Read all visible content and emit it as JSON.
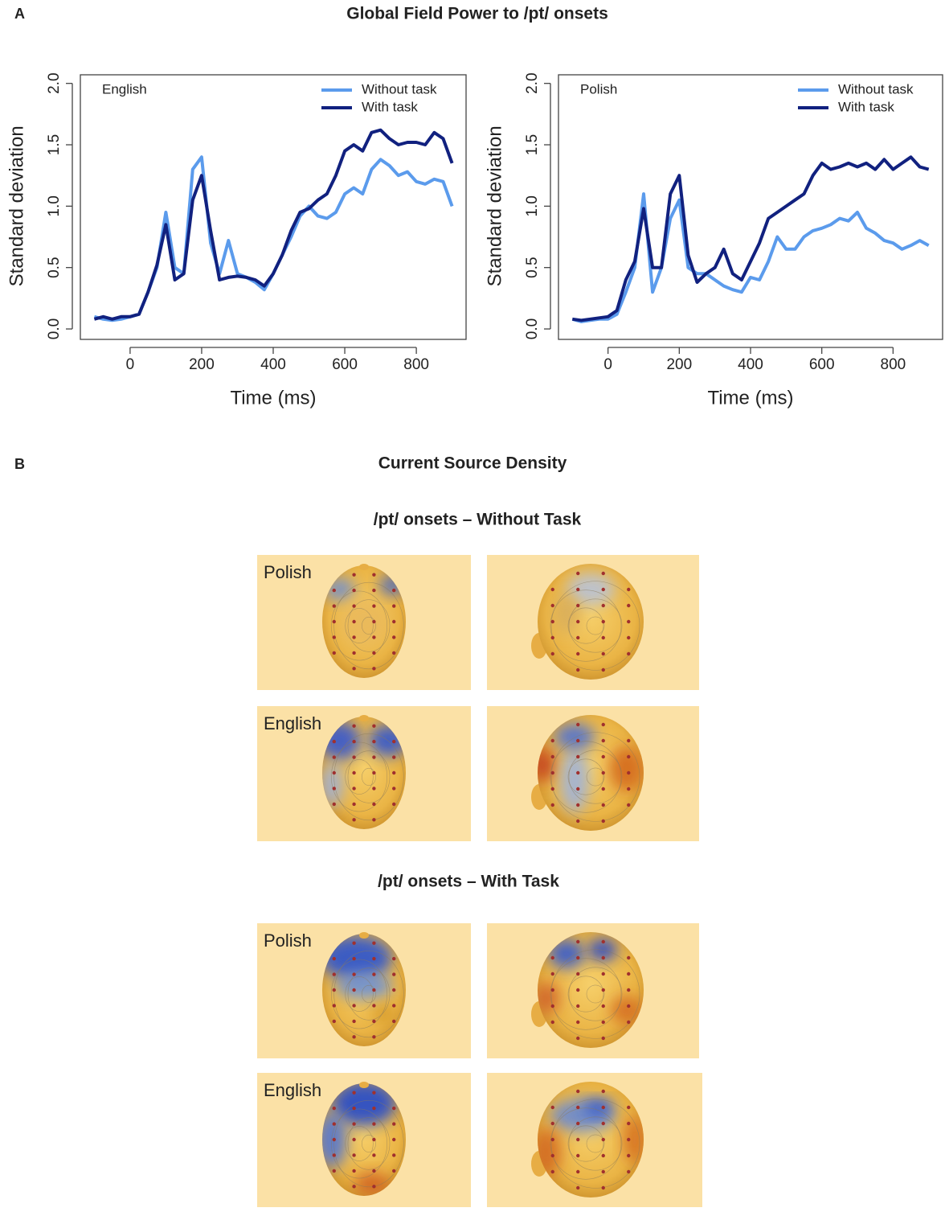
{
  "part_a": {
    "label": "A",
    "title": "Global Field Power  to /pt/ onsets"
  },
  "chart_data": [
    {
      "type": "line",
      "annotation": "English",
      "x_label": "Time (ms)",
      "y_label": "Standard deviation",
      "x": [
        -100,
        -75,
        -50,
        -25,
        0,
        25,
        50,
        75,
        100,
        125,
        150,
        175,
        200,
        225,
        250,
        275,
        300,
        325,
        350,
        375,
        400,
        425,
        450,
        475,
        500,
        525,
        550,
        575,
        600,
        625,
        650,
        675,
        700,
        725,
        750,
        775,
        800,
        825,
        850,
        875,
        900
      ],
      "xlim": [
        -139,
        939
      ],
      "ylim": [
        -0.085,
        2.07
      ],
      "xticks": [
        0,
        200,
        400,
        600,
        800
      ],
      "yticks": [
        {
          "value": 0,
          "label": "0.0"
        },
        0.5,
        {
          "value": 1,
          "label": "1.0"
        },
        1.5,
        {
          "value": 2,
          "label": "2.0"
        }
      ],
      "legend": "top-right",
      "series": [
        {
          "name": "Without task",
          "color": "#5b9bec",
          "values": [
            0.1,
            0.08,
            0.07,
            0.08,
            0.1,
            0.12,
            0.3,
            0.5,
            0.95,
            0.5,
            0.45,
            1.3,
            1.4,
            0.7,
            0.45,
            0.72,
            0.45,
            0.42,
            0.38,
            0.32,
            0.45,
            0.6,
            0.75,
            0.92,
            1.0,
            0.92,
            0.9,
            0.95,
            1.1,
            1.15,
            1.1,
            1.3,
            1.38,
            1.33,
            1.25,
            1.28,
            1.2,
            1.18,
            1.22,
            1.2,
            1.0
          ]
        },
        {
          "name": "With task",
          "color": "#11217f",
          "values": [
            0.08,
            0.1,
            0.08,
            0.1,
            0.1,
            0.12,
            0.3,
            0.52,
            0.85,
            0.4,
            0.45,
            1.05,
            1.25,
            0.8,
            0.4,
            0.42,
            0.43,
            0.42,
            0.4,
            0.35,
            0.45,
            0.6,
            0.8,
            0.95,
            0.98,
            1.05,
            1.1,
            1.25,
            1.45,
            1.5,
            1.45,
            1.6,
            1.62,
            1.55,
            1.5,
            1.52,
            1.52,
            1.5,
            1.6,
            1.55,
            1.35
          ]
        }
      ]
    },
    {
      "type": "line",
      "annotation": "Polish",
      "x_label": "Time (ms)",
      "y_label": "Standard deviation",
      "x": [
        -100,
        -75,
        -50,
        -25,
        0,
        25,
        50,
        75,
        100,
        125,
        150,
        175,
        200,
        225,
        250,
        275,
        300,
        325,
        350,
        375,
        400,
        425,
        450,
        475,
        500,
        525,
        550,
        575,
        600,
        625,
        650,
        675,
        700,
        725,
        750,
        775,
        800,
        825,
        850,
        875,
        900
      ],
      "xlim": [
        -139,
        939
      ],
      "ylim": [
        -0.085,
        2.07
      ],
      "xticks": [
        0,
        200,
        400,
        600,
        800
      ],
      "yticks": [
        {
          "value": 0,
          "label": "0.0"
        },
        0.5,
        {
          "value": 1,
          "label": "1.0"
        },
        1.5,
        {
          "value": 2,
          "label": "2.0"
        }
      ],
      "legend": "top-right",
      "series": [
        {
          "name": "Without task",
          "color": "#5b9bec",
          "values": [
            0.08,
            0.06,
            0.07,
            0.08,
            0.08,
            0.12,
            0.3,
            0.5,
            1.1,
            0.3,
            0.5,
            0.9,
            1.05,
            0.5,
            0.45,
            0.45,
            0.4,
            0.35,
            0.32,
            0.3,
            0.42,
            0.4,
            0.55,
            0.75,
            0.65,
            0.65,
            0.75,
            0.8,
            0.82,
            0.85,
            0.9,
            0.88,
            0.95,
            0.82,
            0.78,
            0.72,
            0.7,
            0.65,
            0.68,
            0.72,
            0.68
          ]
        },
        {
          "name": "With task",
          "color": "#11217f",
          "values": [
            0.08,
            0.07,
            0.08,
            0.09,
            0.1,
            0.15,
            0.4,
            0.55,
            0.98,
            0.5,
            0.5,
            1.1,
            1.25,
            0.6,
            0.38,
            0.45,
            0.5,
            0.65,
            0.45,
            0.4,
            0.55,
            0.7,
            0.9,
            0.95,
            1.0,
            1.05,
            1.1,
            1.25,
            1.35,
            1.3,
            1.32,
            1.35,
            1.32,
            1.35,
            1.3,
            1.38,
            1.3,
            1.35,
            1.4,
            1.32,
            1.3
          ]
        }
      ]
    }
  ],
  "part_b": {
    "label": "B",
    "title": "Current Source Density",
    "sections": [
      {
        "title": "/pt/ onsets – Without Task",
        "rows": [
          "Polish",
          "English"
        ]
      },
      {
        "title": "/pt/ onsets – With Task",
        "rows": [
          "Polish",
          "English"
        ]
      }
    ]
  }
}
